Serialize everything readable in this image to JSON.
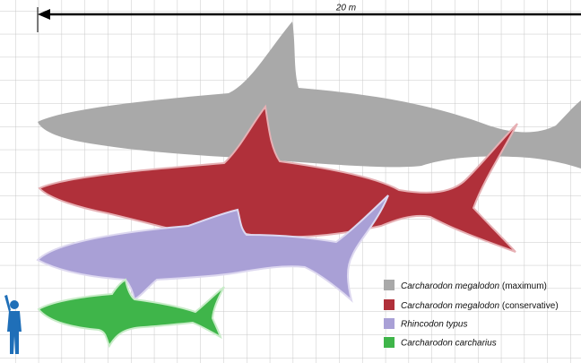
{
  "scale_label": "20 m",
  "legend": {
    "items": [
      {
        "name": "Carcharodon megalodon",
        "qualifier": "(maximum)"
      },
      {
        "name": "Carcharodon megalodon",
        "qualifier": "(conservative)"
      },
      {
        "name": "Rhincodon typus"
      },
      {
        "name": "Carcharodon carcharius"
      }
    ]
  }
}
